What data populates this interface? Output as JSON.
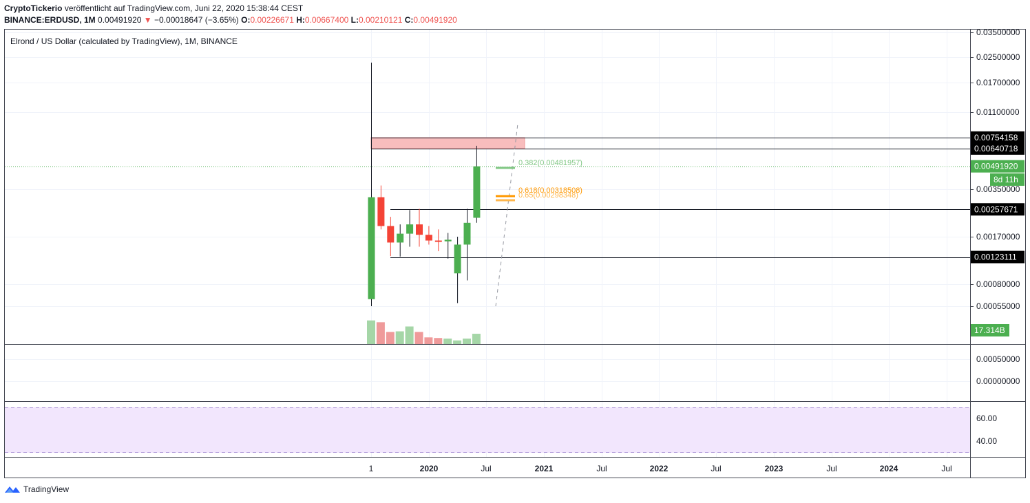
{
  "header": {
    "author": "CryptoTickerio",
    "published_text": "veröffentlicht auf TradingView.com, Juni 22, 2020 15:38:44 CEST",
    "symbol": "BINANCE:ERDUSD, 1M",
    "last": "0.00491920",
    "change": "−0.00018647 (−3.65%)",
    "o_label": "O:",
    "o": "0.00226671",
    "h_label": "H:",
    "h": "0.00667400",
    "l_label": "L:",
    "l": "0.00210121",
    "c_label": "C:",
    "c": "0.00491920"
  },
  "legend": {
    "title": "Elrond / US Dollar (calculated by TradingView), 1M, BINANCE"
  },
  "footer": {
    "brand": "TradingView"
  },
  "colors": {
    "up": "#26a69a",
    "candle_up": "#4caf50",
    "candle_down": "#f44336",
    "rsi_band": "#f2e6fd",
    "rsi_border": "#b39ddb"
  },
  "price_scale": {
    "labels": [
      "0.03500000",
      "0.02500000",
      "0.01700000",
      "0.01100000",
      "0.00350000",
      "0.00170000",
      "0.00080000",
      "0.00055000"
    ],
    "tags": [
      {
        "text": "0.00754158",
        "style": "black"
      },
      {
        "text": "0.00640718",
        "style": "black"
      },
      {
        "text": "0.00491920",
        "style": "green"
      },
      {
        "text": "8d 11h",
        "style": "green"
      },
      {
        "text": "0.00257671",
        "style": "black"
      },
      {
        "text": "0.00123111",
        "style": "black"
      },
      {
        "text": "17.314B",
        "style": "green"
      }
    ]
  },
  "pane2_scale": {
    "labels": [
      "0.00050000",
      "0.00000000"
    ]
  },
  "rsi_scale": {
    "labels": [
      "60.00",
      "40.00"
    ]
  },
  "time_axis": {
    "labels": [
      "1",
      "2020",
      "Jul",
      "2021",
      "Jul",
      "2022",
      "Jul",
      "2023",
      "Jul",
      "2024",
      "Jul"
    ],
    "bold": [
      "2020",
      "2021",
      "2022",
      "2023",
      "2024"
    ]
  },
  "fib": [
    {
      "text": "0.382(0.00481957)",
      "color": "#81c784"
    },
    {
      "text": "0.618(0.00318508)",
      "color": "#ff9800"
    },
    {
      "text": "0.65(0.00298348)",
      "color": "#ffb74d"
    }
  ],
  "chart_data": {
    "type": "candlestick",
    "title": "Elrond / US Dollar (calculated by TradingView), 1M, BINANCE",
    "y_scale": "log",
    "ylim": [
      0.00035,
      0.035
    ],
    "x": [
      "2019-07",
      "2019-08",
      "2019-09",
      "2019-10",
      "2019-11",
      "2019-12",
      "2020-01",
      "2020-02",
      "2020-03",
      "2020-04",
      "2020-05",
      "2020-06"
    ],
    "open": [
      0.00062,
      0.0031,
      0.002,
      0.00155,
      0.00178,
      0.00205,
      0.00175,
      0.0016,
      0.00158,
      0.00095,
      0.0015,
      0.00226671
    ],
    "high": [
      0.023,
      0.0037,
      0.0023,
      0.00205,
      0.00255,
      0.0026,
      0.002,
      0.0019,
      0.0018,
      0.0017,
      0.0026,
      0.006674
    ],
    "low": [
      0.00055,
      0.0019,
      0.00125,
      0.00124,
      0.00145,
      0.00145,
      0.0015,
      0.00135,
      0.0012,
      0.00058,
      0.00085,
      0.00210121
    ],
    "close": [
      0.0031,
      0.002,
      0.00155,
      0.00178,
      0.00205,
      0.00175,
      0.0016,
      0.00158,
      0.00162,
      0.0015,
      0.0021,
      0.0049192
    ],
    "volume": [
      0.78,
      0.72,
      0.4,
      0.42,
      0.58,
      0.4,
      0.22,
      0.2,
      0.18,
      0.12,
      0.18,
      0.34
    ],
    "horizontal_levels": [
      0.00754158,
      0.00640718,
      0.00257671,
      0.00123111
    ],
    "last_price": 0.0049192
  }
}
